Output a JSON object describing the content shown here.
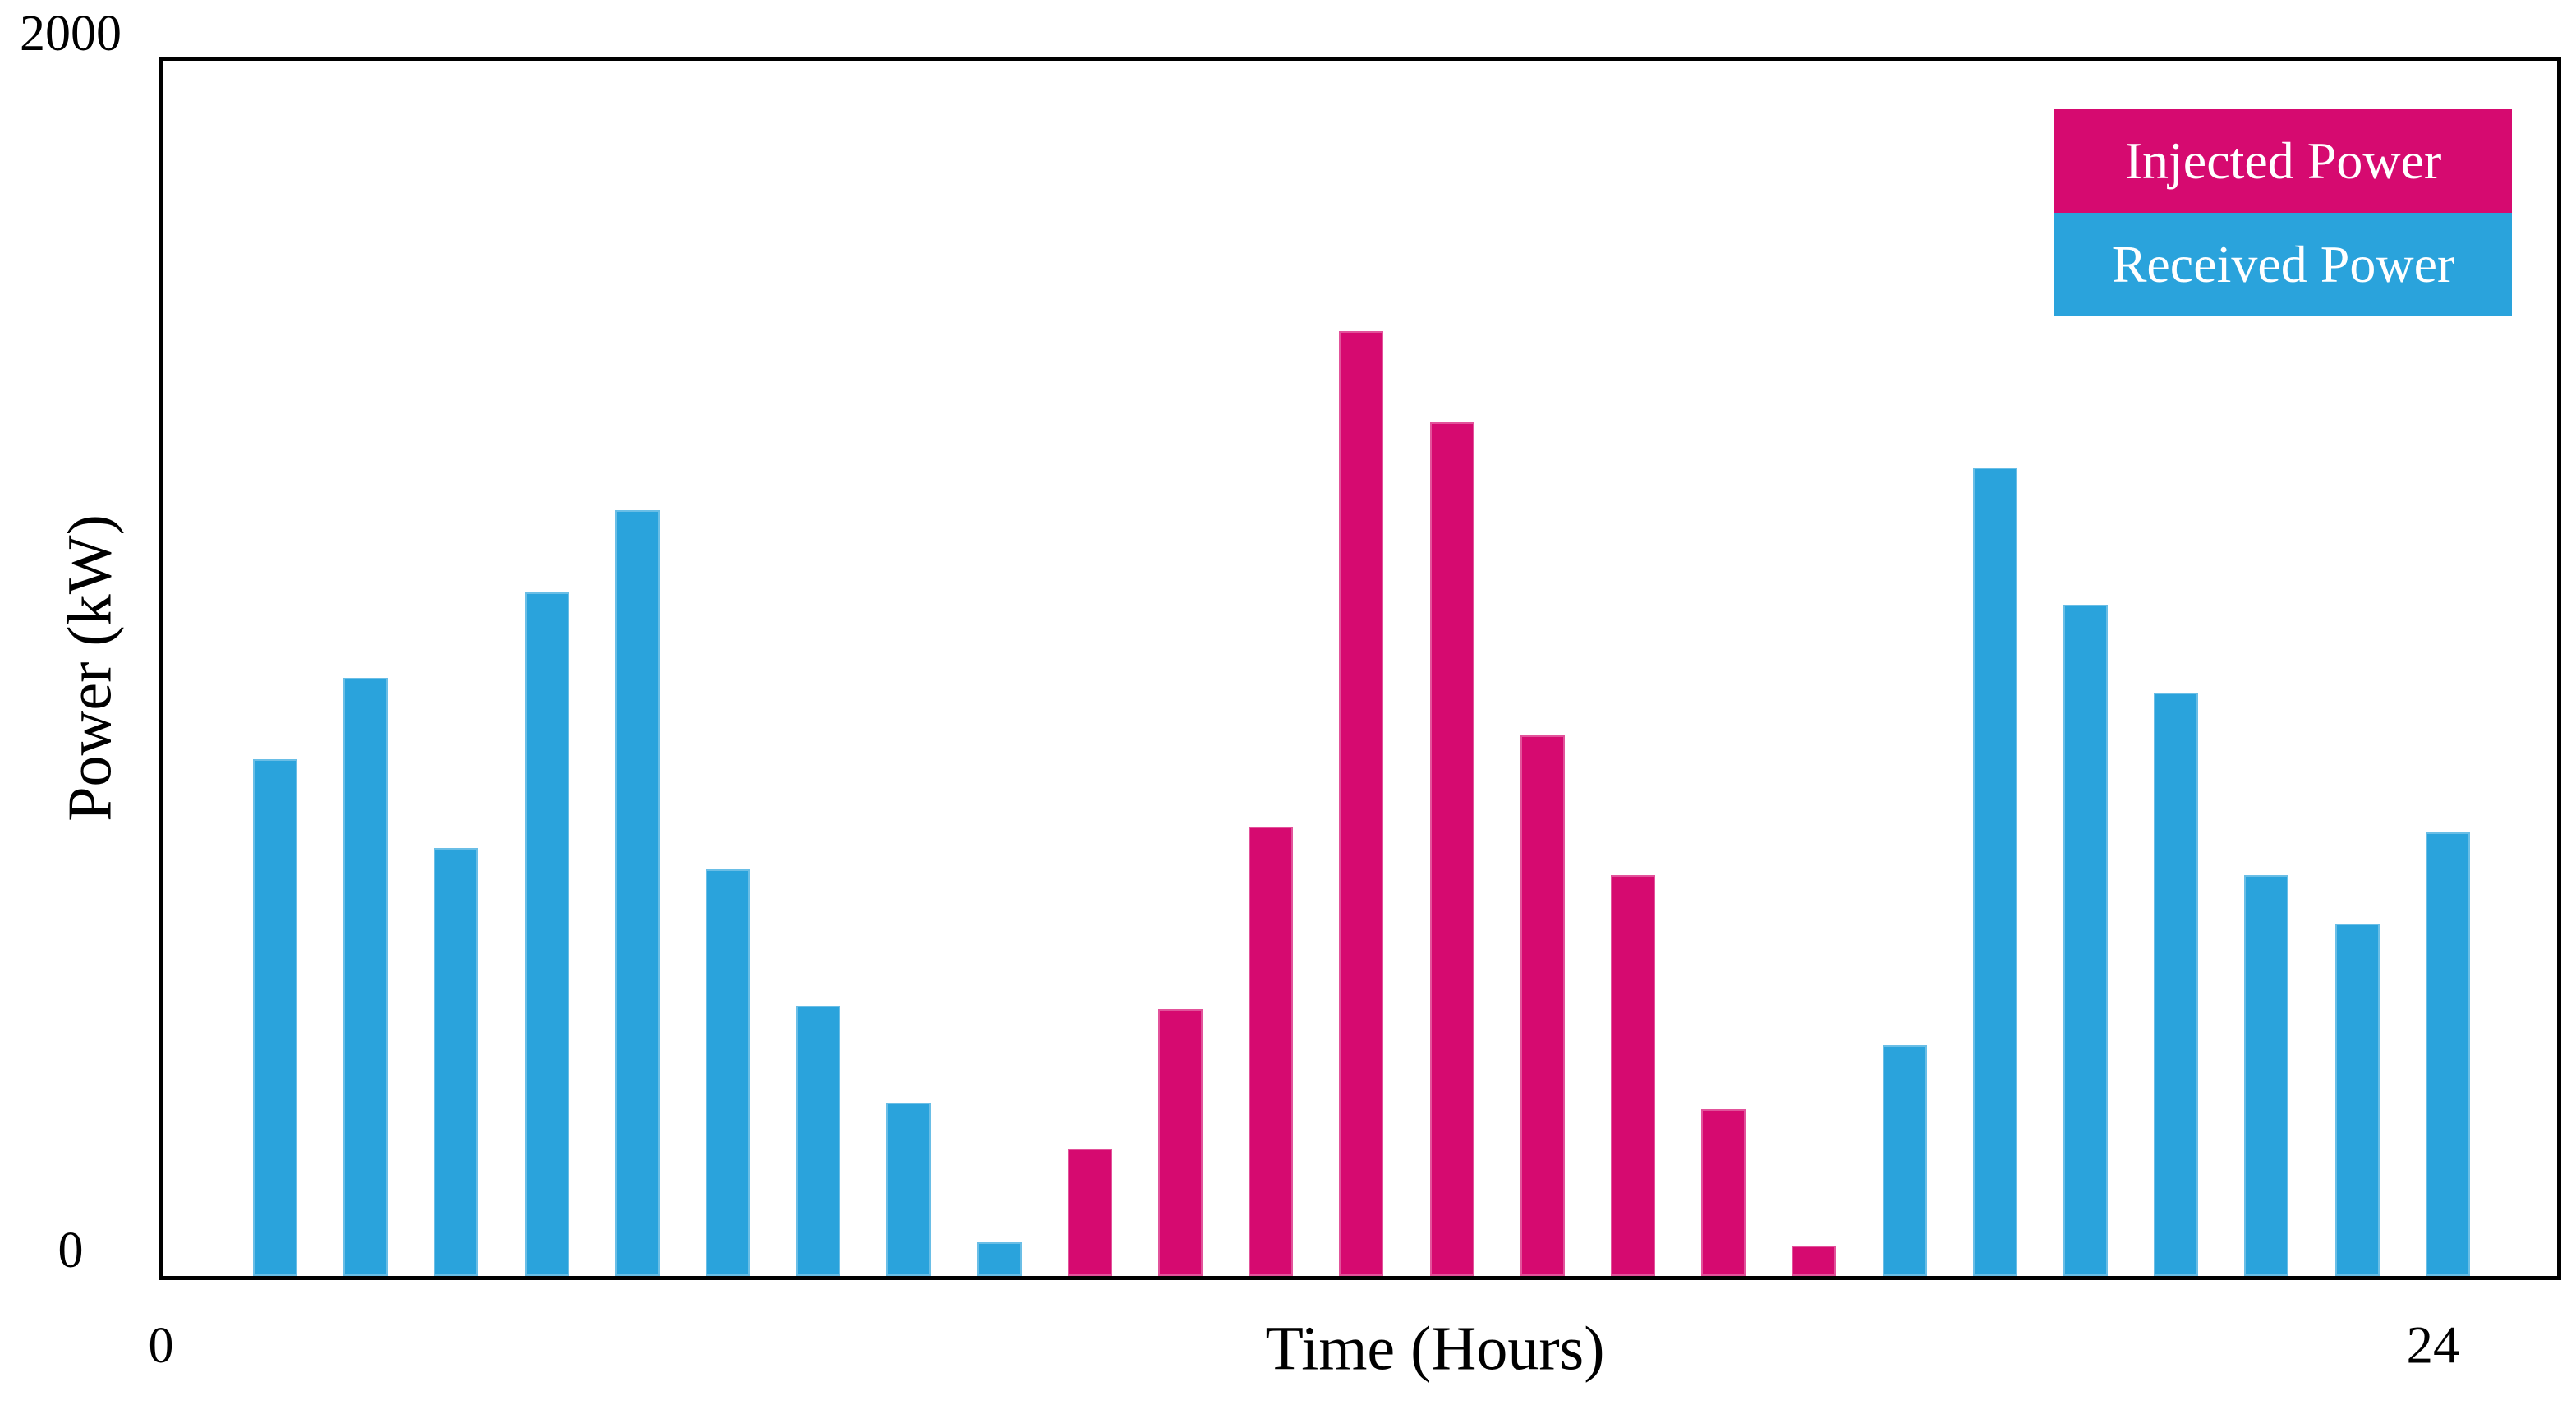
{
  "figure": {
    "background_color": "#ffffff",
    "axis_line_color": "#000000"
  },
  "y_axis": {
    "title": "Power (kW)",
    "max_tick_label": "2000",
    "min_tick_label": "0"
  },
  "x_axis": {
    "title": "Time (Hours)",
    "start_tick_label": "0",
    "end_tick_label": "24"
  },
  "legend": {
    "items": [
      {
        "label": "Injected Power",
        "color": "#D60A70"
      },
      {
        "label": "Received Power",
        "color": "#2AA3DC"
      }
    ]
  },
  "chart_data": {
    "type": "bar",
    "title": "",
    "xlabel": "Time (Hours)",
    "ylabel": "Power (kW)",
    "ylim": [
      0,
      2000
    ],
    "xlim": [
      0,
      24
    ],
    "grid": false,
    "legend_position": "top-right",
    "x": [
      0,
      1,
      2,
      3,
      4,
      5,
      6,
      7,
      8,
      9,
      10,
      11,
      12,
      13,
      14,
      15,
      16,
      17,
      18,
      19,
      20,
      21,
      22,
      23,
      24
    ],
    "bars": [
      {
        "hour": 0,
        "series": "Received Power",
        "value": 850
      },
      {
        "hour": 1,
        "series": "Received Power",
        "value": 985
      },
      {
        "hour": 2,
        "series": "Received Power",
        "value": 705
      },
      {
        "hour": 3,
        "series": "Received Power",
        "value": 1125
      },
      {
        "hour": 4,
        "series": "Received Power",
        "value": 1260
      },
      {
        "hour": 5,
        "series": "Received Power",
        "value": 670
      },
      {
        "hour": 6,
        "series": "Received Power",
        "value": 445
      },
      {
        "hour": 7,
        "series": "Received Power",
        "value": 285
      },
      {
        "hour": 8,
        "series": "Received Power",
        "value": 55
      },
      {
        "hour": 9,
        "series": "Injected Power",
        "value": 210
      },
      {
        "hour": 10,
        "series": "Injected Power",
        "value": 440
      },
      {
        "hour": 11,
        "series": "Injected Power",
        "value": 740
      },
      {
        "hour": 12,
        "series": "Injected Power",
        "value": 1555
      },
      {
        "hour": 13,
        "series": "Injected Power",
        "value": 1405
      },
      {
        "hour": 14,
        "series": "Injected Power",
        "value": 890
      },
      {
        "hour": 15,
        "series": "Injected Power",
        "value": 660
      },
      {
        "hour": 16,
        "series": "Injected Power",
        "value": 275
      },
      {
        "hour": 17,
        "series": "Injected Power",
        "value": 50
      },
      {
        "hour": 18,
        "series": "Received Power",
        "value": 380
      },
      {
        "hour": 19,
        "series": "Received Power",
        "value": 1330
      },
      {
        "hour": 20,
        "series": "Received Power",
        "value": 1105
      },
      {
        "hour": 21,
        "series": "Received Power",
        "value": 960
      },
      {
        "hour": 22,
        "series": "Received Power",
        "value": 660
      },
      {
        "hour": 23,
        "series": "Received Power",
        "value": 580
      },
      {
        "hour": 24,
        "series": "Received Power",
        "value": 730
      }
    ],
    "series": [
      {
        "name": "Injected Power",
        "color": "#D60A70",
        "hours": [
          9,
          10,
          11,
          12,
          13,
          14,
          15,
          16,
          17
        ],
        "values": [
          210,
          440,
          740,
          1555,
          1405,
          890,
          660,
          275,
          50
        ]
      },
      {
        "name": "Received Power",
        "color": "#2AA3DC",
        "hours": [
          0,
          1,
          2,
          3,
          4,
          5,
          6,
          7,
          8,
          18,
          19,
          20,
          21,
          22,
          23,
          24
        ],
        "values": [
          850,
          985,
          705,
          1125,
          1260,
          670,
          445,
          285,
          55,
          380,
          1330,
          1105,
          960,
          660,
          580,
          730
        ]
      }
    ]
  }
}
